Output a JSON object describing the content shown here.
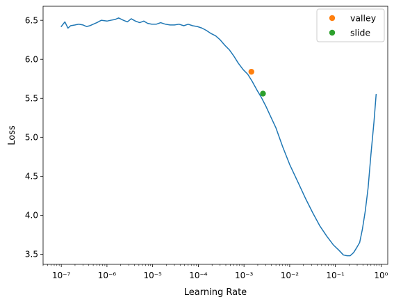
{
  "chart_data": {
    "type": "line",
    "xlabel": "Learning Rate",
    "ylabel": "Loss",
    "xscale": "log",
    "xlim": [
      4e-08,
      1.4
    ],
    "ylim": [
      3.37,
      6.68
    ],
    "xticks": [
      {
        "value": 1e-07,
        "label": "10⁻⁷"
      },
      {
        "value": 1e-06,
        "label": "10⁻⁶"
      },
      {
        "value": 1e-05,
        "label": "10⁻⁵"
      },
      {
        "value": 0.0001,
        "label": "10⁻⁴"
      },
      {
        "value": 0.001,
        "label": "10⁻³"
      },
      {
        "value": 0.01,
        "label": "10⁻²"
      },
      {
        "value": 0.1,
        "label": "10⁻¹"
      },
      {
        "value": 1,
        "label": "10⁰"
      }
    ],
    "yticks": [
      {
        "value": 3.5,
        "label": "3.5"
      },
      {
        "value": 4.0,
        "label": "4.0"
      },
      {
        "value": 4.5,
        "label": "4.5"
      },
      {
        "value": 5.0,
        "label": "5.0"
      },
      {
        "value": 5.5,
        "label": "5.5"
      },
      {
        "value": 6.0,
        "label": "6.0"
      },
      {
        "value": 6.5,
        "label": "6.5"
      }
    ],
    "grid": false,
    "legend_position": "top-right",
    "series": [
      {
        "color": "#1f77b4",
        "x": [
          1e-07,
          1.2e-07,
          1.4e-07,
          1.6e-07,
          2e-07,
          2.4e-07,
          3e-07,
          3.6e-07,
          4.2e-07,
          5e-07,
          6e-07,
          7.5e-07,
          1e-06,
          1.2e-06,
          1.5e-06,
          1.8e-06,
          2.3e-06,
          2.8e-06,
          3.4e-06,
          4.2e-06,
          5.2e-06,
          6.4e-06,
          7.8e-06,
          9.5e-06,
          1.2e-05,
          1.5e-05,
          1.9e-05,
          2.4e-05,
          3e-05,
          3.8e-05,
          4.8e-05,
          6e-05,
          7.5e-05,
          9.5e-05,
          0.00012,
          0.00015,
          0.00019,
          0.00024,
          0.0003,
          0.00038,
          0.00048,
          0.0006,
          0.00075,
          0.00095,
          0.0012,
          0.0015,
          0.0019,
          0.0024,
          0.003,
          0.0038,
          0.005,
          0.007,
          0.01,
          0.015,
          0.022,
          0.032,
          0.046,
          0.065,
          0.09,
          0.12,
          0.15,
          0.18,
          0.21,
          0.25,
          0.29,
          0.34,
          0.39,
          0.45,
          0.52,
          0.6,
          0.7,
          0.78
        ],
        "y": [
          6.42,
          6.48,
          6.4,
          6.43,
          6.44,
          6.45,
          6.44,
          6.42,
          6.43,
          6.45,
          6.47,
          6.5,
          6.49,
          6.5,
          6.51,
          6.53,
          6.5,
          6.48,
          6.52,
          6.49,
          6.47,
          6.49,
          6.46,
          6.45,
          6.45,
          6.47,
          6.45,
          6.44,
          6.44,
          6.45,
          6.43,
          6.45,
          6.43,
          6.42,
          6.4,
          6.37,
          6.33,
          6.3,
          6.25,
          6.18,
          6.12,
          6.04,
          5.95,
          5.87,
          5.81,
          5.72,
          5.61,
          5.51,
          5.4,
          5.27,
          5.12,
          4.88,
          4.65,
          4.43,
          4.22,
          4.03,
          3.86,
          3.73,
          3.62,
          3.55,
          3.49,
          3.48,
          3.48,
          3.52,
          3.58,
          3.65,
          3.82,
          4.05,
          4.35,
          4.78,
          5.2,
          5.55
        ]
      }
    ],
    "points": [
      {
        "name": "valley",
        "x": 0.00145,
        "y": 5.84,
        "color": "#ff7f0e"
      },
      {
        "name": "slide",
        "x": 0.0026,
        "y": 5.56,
        "color": "#2ca02c"
      }
    ]
  }
}
